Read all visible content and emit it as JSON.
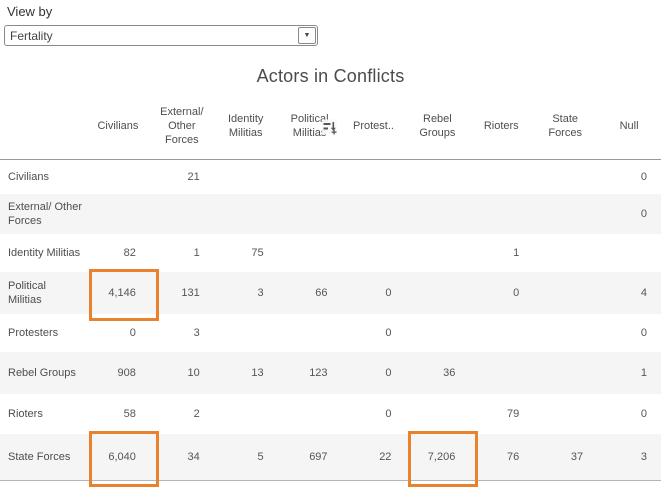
{
  "controls": {
    "view_by_label": "View by",
    "view_by_value": "Fertality",
    "dropdown_arrow": "▼"
  },
  "title": "Actors in Conflicts",
  "highlight_color": "#e8822c",
  "band_color": "#f5f5f5",
  "icons": {
    "sort_icon": "sort-descending"
  },
  "chart_data": {
    "type": "table",
    "title": "Actors in Conflicts",
    "columns": [
      "Civilians",
      "External/ Other Forces",
      "Identity Militias",
      "Political Militias",
      "Protest..",
      "Rebel Groups",
      "Rioters",
      "State Forces",
      "Null"
    ],
    "sort_icon_column_index": 3,
    "rows": [
      {
        "label": "Civilians",
        "values": [
          "",
          "21",
          "",
          "",
          "",
          "",
          "",
          "",
          "0"
        ],
        "highlighted_cols": []
      },
      {
        "label": "External/ Other Forces",
        "values": [
          "",
          "",
          "",
          "",
          "",
          "",
          "",
          "",
          "0"
        ],
        "highlighted_cols": []
      },
      {
        "label": "Identity Militias",
        "values": [
          "82",
          "1",
          "75",
          "",
          "",
          "",
          "1",
          "",
          ""
        ],
        "highlighted_cols": []
      },
      {
        "label": "Political Militias",
        "values": [
          "4,146",
          "131",
          "3",
          "66",
          "0",
          "",
          "0",
          "",
          "4"
        ],
        "highlighted_cols": [
          0
        ]
      },
      {
        "label": "Protesters",
        "values": [
          "0",
          "3",
          "",
          "",
          "0",
          "",
          "",
          "",
          "0"
        ],
        "highlighted_cols": []
      },
      {
        "label": "Rebel Groups",
        "values": [
          "908",
          "10",
          "13",
          "123",
          "0",
          "36",
          "",
          "",
          "1"
        ],
        "highlighted_cols": []
      },
      {
        "label": "Rioters",
        "values": [
          "58",
          "2",
          "",
          "",
          "0",
          "",
          "79",
          "",
          "0"
        ],
        "highlighted_cols": []
      },
      {
        "label": "State Forces",
        "values": [
          "6,040",
          "34",
          "5",
          "697",
          "22",
          "7,206",
          "76",
          "37",
          "3"
        ],
        "highlighted_cols": [
          0,
          5
        ]
      }
    ]
  }
}
